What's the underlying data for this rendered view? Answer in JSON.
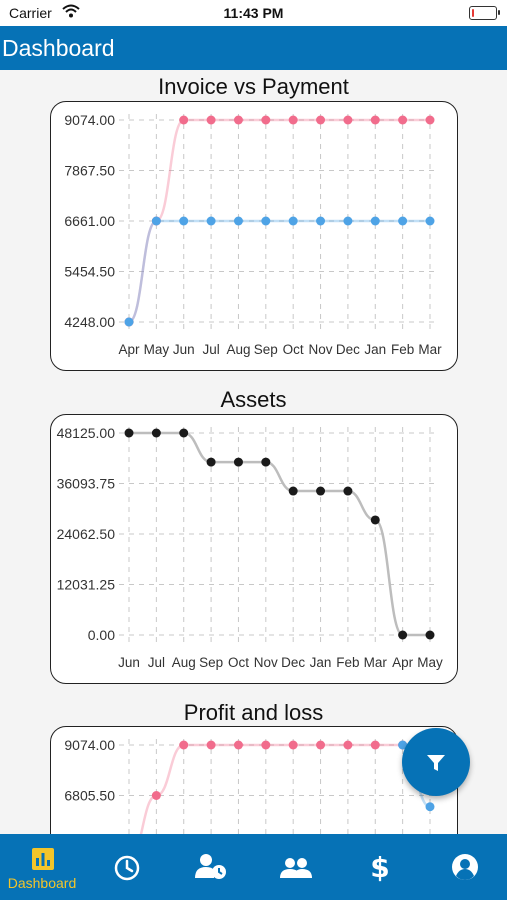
{
  "status_bar": {
    "carrier": "Carrier",
    "time": "11:43 PM",
    "battery_level": 0.1
  },
  "header": {
    "title": "Dashboard"
  },
  "chart_data": [
    {
      "type": "line",
      "title": "Invoice vs Payment",
      "categories": [
        "Apr",
        "May",
        "Jun",
        "Jul",
        "Aug",
        "Sep",
        "Oct",
        "Nov",
        "Dec",
        "Jan",
        "Feb",
        "Mar"
      ],
      "y_ticks": [
        "9074.00",
        "7867.50",
        "6661.00",
        "5454.50",
        "4248.00"
      ],
      "ylim": [
        4248,
        9074
      ],
      "grid": true,
      "series": [
        {
          "color": "#f16c8c",
          "values": [
            4248,
            6661,
            9074,
            9074,
            9074,
            9074,
            9074,
            9074,
            9074,
            9074,
            9074,
            9074
          ]
        },
        {
          "color": "#4ea3e6",
          "values": [
            4248,
            6661,
            6661,
            6661,
            6661,
            6661,
            6661,
            6661,
            6661,
            6661,
            6661,
            6661
          ]
        }
      ]
    },
    {
      "type": "line",
      "title": "Assets",
      "categories": [
        "Jun",
        "Jul",
        "Aug",
        "Sep",
        "Oct",
        "Nov",
        "Dec",
        "Jan",
        "Feb",
        "Mar",
        "Apr",
        "May"
      ],
      "y_ticks": [
        "48125.00",
        "36093.75",
        "24062.50",
        "12031.25",
        "0.00"
      ],
      "ylim": [
        0,
        48125
      ],
      "grid": true,
      "series": [
        {
          "color": "#1a1a1a",
          "values": [
            48125,
            48125,
            48125,
            41200,
            41200,
            41200,
            34300,
            34300,
            34300,
            27400,
            0,
            0
          ]
        }
      ]
    },
    {
      "type": "line",
      "title": "Profit and loss",
      "y_ticks": [
        "9074.00",
        "6805.50"
      ],
      "ylim": [
        0,
        9074
      ],
      "grid": true,
      "series": [
        {
          "color": "#f16c8c",
          "values": [
            4000,
            6805.5,
            9074,
            9074,
            9074,
            9074,
            9074,
            9074,
            9074,
            9074,
            9074,
            9074
          ]
        },
        {
          "color": "#4ea3e6",
          "values": [
            null,
            null,
            null,
            null,
            null,
            null,
            null,
            null,
            null,
            null,
            9074,
            6300
          ]
        }
      ]
    }
  ],
  "tabs": [
    {
      "label": "Dashboard",
      "icon": "bar-chart-icon",
      "active": true
    },
    {
      "label": "",
      "icon": "clock-icon"
    },
    {
      "label": "",
      "icon": "user-clock-icon"
    },
    {
      "label": "",
      "icon": "users-icon"
    },
    {
      "label": "",
      "icon": "dollar-icon"
    },
    {
      "label": "",
      "icon": "account-icon"
    }
  ],
  "fab": {
    "icon": "filter-icon"
  },
  "colors": {
    "primary": "#0672b6",
    "active_tab": "#f3c52a",
    "payment_series": "#f16c8c",
    "invoice_series": "#4ea3e6",
    "assets_series": "#1a1a1a"
  }
}
